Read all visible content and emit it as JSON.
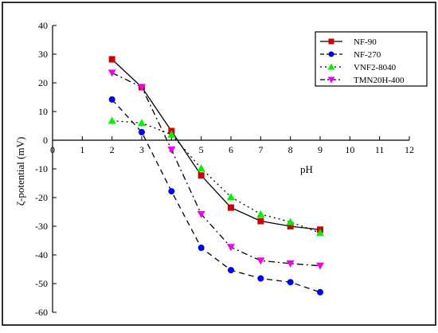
{
  "chart_data": {
    "type": "line",
    "title": "",
    "xlabel": "pH",
    "ylabel": "ζ-potential (mV)",
    "xlim": [
      0,
      12
    ],
    "ylim": [
      -60,
      40
    ],
    "x_ticks": [
      0,
      1,
      2,
      3,
      4,
      5,
      6,
      7,
      8,
      9,
      10,
      11,
      12
    ],
    "y_ticks": [
      40,
      30,
      20,
      10,
      0,
      -10,
      -20,
      -30,
      -40,
      -50,
      -60
    ],
    "x_axis_crosses_at_y": 0,
    "grid": false,
    "legend_position": "top-right",
    "series": [
      {
        "name": "NF-90",
        "color": "#cc0000",
        "marker": "square",
        "line_style": "solid",
        "x": [
          2,
          3,
          4,
          5,
          6,
          7,
          8,
          9
        ],
        "y": [
          28.2,
          18.5,
          3.2,
          -12.3,
          -23.5,
          -28.2,
          -30,
          -31.2
        ]
      },
      {
        "name": "NF-270",
        "color": "#0000ee",
        "marker": "circle",
        "line_style": "dashed",
        "x": [
          2,
          3,
          4,
          5,
          6,
          7,
          8,
          9
        ],
        "y": [
          14.2,
          2.8,
          -17.8,
          -37.5,
          -45.3,
          -48.2,
          -49.5,
          -53
        ]
      },
      {
        "name": "VNF2-8040",
        "color": "#00ee00",
        "marker": "triangle-up",
        "line_style": "dotted",
        "x": [
          2,
          3,
          4,
          5,
          6,
          7,
          8,
          9
        ],
        "y": [
          6.8,
          6,
          2,
          -9.8,
          -19.8,
          -25.8,
          -28.5,
          -32.3
        ]
      },
      {
        "name": "TMN20H-400",
        "color": "#ee00ee",
        "marker": "triangle-down",
        "line_style": "dash-dot",
        "x": [
          2,
          3,
          4,
          5,
          6,
          7,
          8,
          9
        ],
        "y": [
          23.5,
          18.5,
          -3.3,
          -25.8,
          -37.3,
          -42,
          -43,
          -43.8
        ]
      }
    ]
  }
}
